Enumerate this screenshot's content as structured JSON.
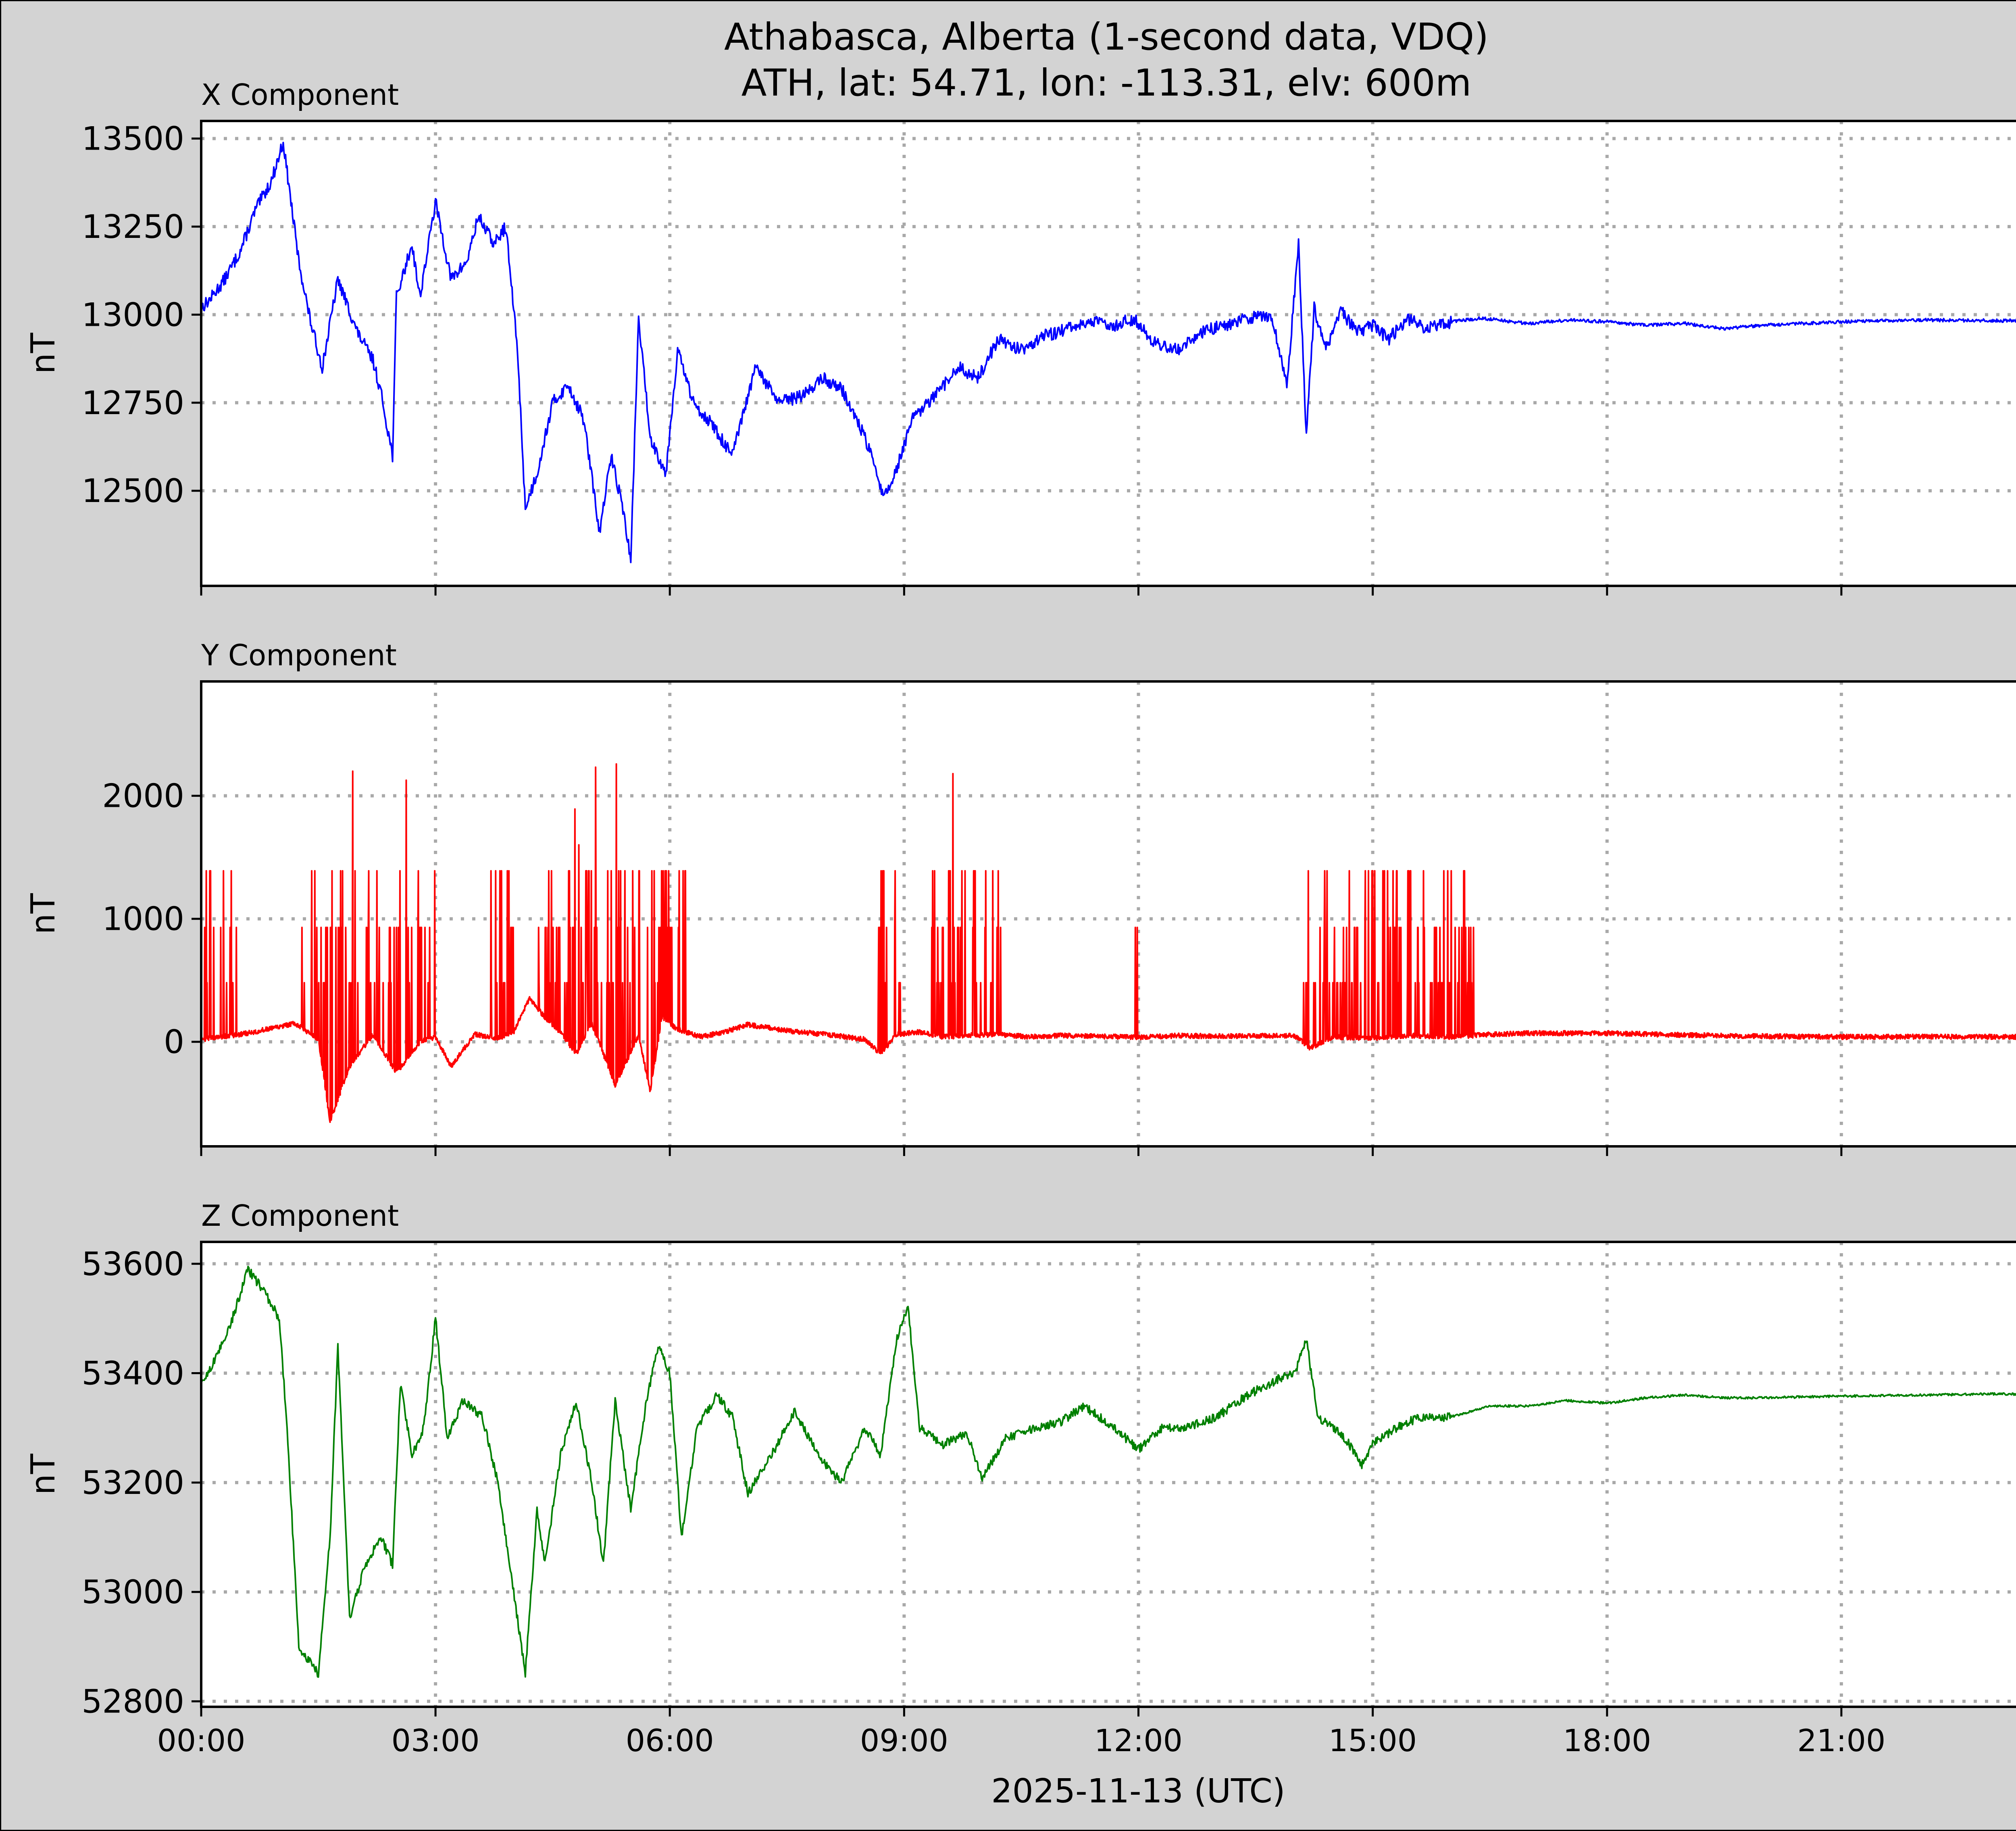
{
  "figure": {
    "title_line1": "Athabasca, Alberta (1-second data, VDQ)",
    "title_line2": "ATH, lat: 54.71, lon: -113.31, elv: 600m",
    "xlabel": "2025-11-13 (UTC)",
    "background_color": "#d3d3d3"
  },
  "chart_data": [
    {
      "type": "line",
      "title": "X Component",
      "ylabel": "nT",
      "color": "#0000ff",
      "xlim": [
        "00:00",
        "24:00"
      ],
      "ylim": [
        12230,
        13550
      ],
      "yticks": [
        12500,
        12750,
        13000,
        13250,
        13500
      ],
      "xticks": [
        "00:00",
        "03:00",
        "06:00",
        "09:00",
        "12:00",
        "15:00",
        "18:00",
        "21:00"
      ],
      "grid": true,
      "x_hours": [
        0,
        0.1,
        0.3,
        0.5,
        0.7,
        0.9,
        1.05,
        1.25,
        1.4,
        1.55,
        1.75,
        2.0,
        2.2,
        2.3,
        2.45,
        2.5,
        2.7,
        2.8,
        3.0,
        3.2,
        3.4,
        3.55,
        3.75,
        3.9,
        4.05,
        4.15,
        4.3,
        4.5,
        4.7,
        4.9,
        5.1,
        5.25,
        5.4,
        5.5,
        5.6,
        5.75,
        5.95,
        6.1,
        6.3,
        6.5,
        6.8,
        7.1,
        7.4,
        7.7,
        7.95,
        8.2,
        8.5,
        8.75,
        8.9,
        9.1,
        9.4,
        9.7,
        9.95,
        10.2,
        10.5,
        10.8,
        11.1,
        11.4,
        11.7,
        11.95,
        12.2,
        12.5,
        12.8,
        13.1,
        13.4,
        13.7,
        13.9,
        14.05,
        14.15,
        14.25,
        14.4,
        14.6,
        14.8,
        15.0,
        15.2,
        15.45,
        15.7,
        16.0,
        16.4,
        17.0,
        17.5,
        18.0,
        18.5,
        19.0,
        19.5,
        20.0,
        20.5,
        21.0,
        22.0,
        23.0,
        24.0
      ],
      "values": [
        13020,
        13040,
        13100,
        13180,
        13300,
        13380,
        13490,
        13150,
        12980,
        12850,
        13100,
        12950,
        12870,
        12780,
        12600,
        13050,
        13200,
        13050,
        13320,
        13100,
        13150,
        13280,
        13200,
        13250,
        12900,
        12450,
        12550,
        12750,
        12800,
        12700,
        12380,
        12600,
        12450,
        12300,
        12990,
        12650,
        12550,
        12900,
        12750,
        12700,
        12600,
        12850,
        12750,
        12770,
        12820,
        12790,
        12650,
        12480,
        12560,
        12700,
        12770,
        12850,
        12820,
        12930,
        12900,
        12940,
        12960,
        12980,
        12970,
        12990,
        12920,
        12900,
        12950,
        12970,
        12990,
        13000,
        12800,
        13200,
        12650,
        13020,
        12900,
        13010,
        12950,
        12970,
        12930,
        12990,
        12960,
        12980,
        12990,
        12975,
        12985,
        12980,
        12970,
        12975,
        12960,
        12970,
        12975,
        12980,
        12985,
        12983,
        12983
      ]
    },
    {
      "type": "line",
      "title": "Y Component",
      "ylabel": "nT",
      "color": "#ff0000",
      "xlim": [
        "00:00",
        "24:00"
      ],
      "ylim": [
        -850,
        2930
      ],
      "yticks": [
        0,
        1000,
        2000
      ],
      "xticks": [
        "00:00",
        "03:00",
        "06:00",
        "09:00",
        "12:00",
        "15:00",
        "18:00",
        "21:00"
      ],
      "grid": true,
      "baseline_hours": [
        0,
        0.5,
        1.0,
        1.2,
        1.5,
        1.65,
        1.9,
        2.2,
        2.5,
        2.8,
        3.0,
        3.2,
        3.5,
        3.8,
        4.0,
        4.2,
        4.4,
        4.6,
        4.8,
        5.0,
        5.3,
        5.6,
        5.75,
        5.9,
        6.1,
        6.4,
        6.7,
        7.0,
        7.5,
        8.0,
        8.5,
        8.7,
        8.9,
        9.2,
        9.5,
        9.8,
        10.2,
        10.6,
        11.0,
        11.5,
        12.0,
        12.5,
        13.0,
        13.5,
        14.0,
        14.2,
        14.5,
        15.0,
        15.5,
        16.0,
        16.5,
        17.0,
        18.0,
        19.0,
        20.0,
        21.0,
        22.0,
        23.0,
        24.0
      ],
      "baseline_values": [
        20,
        60,
        120,
        150,
        20,
        -650,
        -200,
        60,
        -250,
        0,
        40,
        -200,
        60,
        30,
        80,
        350,
        200,
        80,
        -100,
        150,
        -350,
        50,
        -400,
        200,
        100,
        40,
        80,
        140,
        90,
        60,
        20,
        -100,
        60,
        80,
        40,
        50,
        60,
        40,
        50,
        45,
        35,
        50,
        45,
        50,
        50,
        -50,
        40,
        30,
        50,
        40,
        60,
        70,
        70,
        55,
        45,
        40,
        42,
        40,
        40
      ]
    },
    {
      "type": "line",
      "title": "Z Component",
      "ylabel": "nT",
      "color": "#008000",
      "xlim": [
        "00:00",
        "24:00"
      ],
      "ylim": [
        52790,
        53640
      ],
      "yticks": [
        52800,
        53000,
        53200,
        53400,
        53600
      ],
      "xticks": [
        "00:00",
        "03:00",
        "06:00",
        "09:00",
        "12:00",
        "15:00",
        "18:00",
        "21:00"
      ],
      "grid": true,
      "x_hours": [
        0,
        0.2,
        0.4,
        0.6,
        0.8,
        1.0,
        1.1,
        1.25,
        1.4,
        1.5,
        1.65,
        1.75,
        1.9,
        2.1,
        2.3,
        2.45,
        2.55,
        2.7,
        2.85,
        3.0,
        3.15,
        3.35,
        3.6,
        3.8,
        4.0,
        4.15,
        4.3,
        4.4,
        4.6,
        4.8,
        5.0,
        5.15,
        5.3,
        5.5,
        5.7,
        5.85,
        6.0,
        6.15,
        6.35,
        6.6,
        6.8,
        7.0,
        7.3,
        7.6,
        7.9,
        8.2,
        8.5,
        8.7,
        8.9,
        9.05,
        9.2,
        9.5,
        9.8,
        10.0,
        10.3,
        10.7,
        11.0,
        11.3,
        11.7,
        12.0,
        12.3,
        12.6,
        13.0,
        13.4,
        13.8,
        14.0,
        14.15,
        14.3,
        14.5,
        14.7,
        14.85,
        15.0,
        15.3,
        15.6,
        16.0,
        16.5,
        17.0,
        17.5,
        18.0,
        18.5,
        19.0,
        19.5,
        20.0,
        21.0,
        22.0,
        23.0,
        24.0
      ],
      "values": [
        53380,
        53430,
        53500,
        53590,
        53550,
        53500,
        53300,
        52900,
        52870,
        52850,
        53100,
        53450,
        52950,
        53050,
        53100,
        53050,
        53380,
        53250,
        53300,
        53500,
        53280,
        53350,
        53320,
        53200,
        53000,
        52850,
        53150,
        53050,
        53250,
        53350,
        53200,
        53050,
        53350,
        53150,
        53350,
        53450,
        53400,
        53100,
        53300,
        53360,
        53320,
        53180,
        53250,
        53330,
        53250,
        53200,
        53300,
        53250,
        53460,
        53520,
        53300,
        53270,
        53290,
        53210,
        53280,
        53300,
        53310,
        53340,
        53300,
        53260,
        53300,
        53300,
        53320,
        53360,
        53390,
        53400,
        53460,
        53320,
        53300,
        53270,
        53230,
        53270,
        53300,
        53320,
        53320,
        53340,
        53340,
        53350,
        53345,
        53355,
        53360,
        53355,
        53355,
        53358,
        53360,
        53362,
        53360
      ]
    }
  ]
}
